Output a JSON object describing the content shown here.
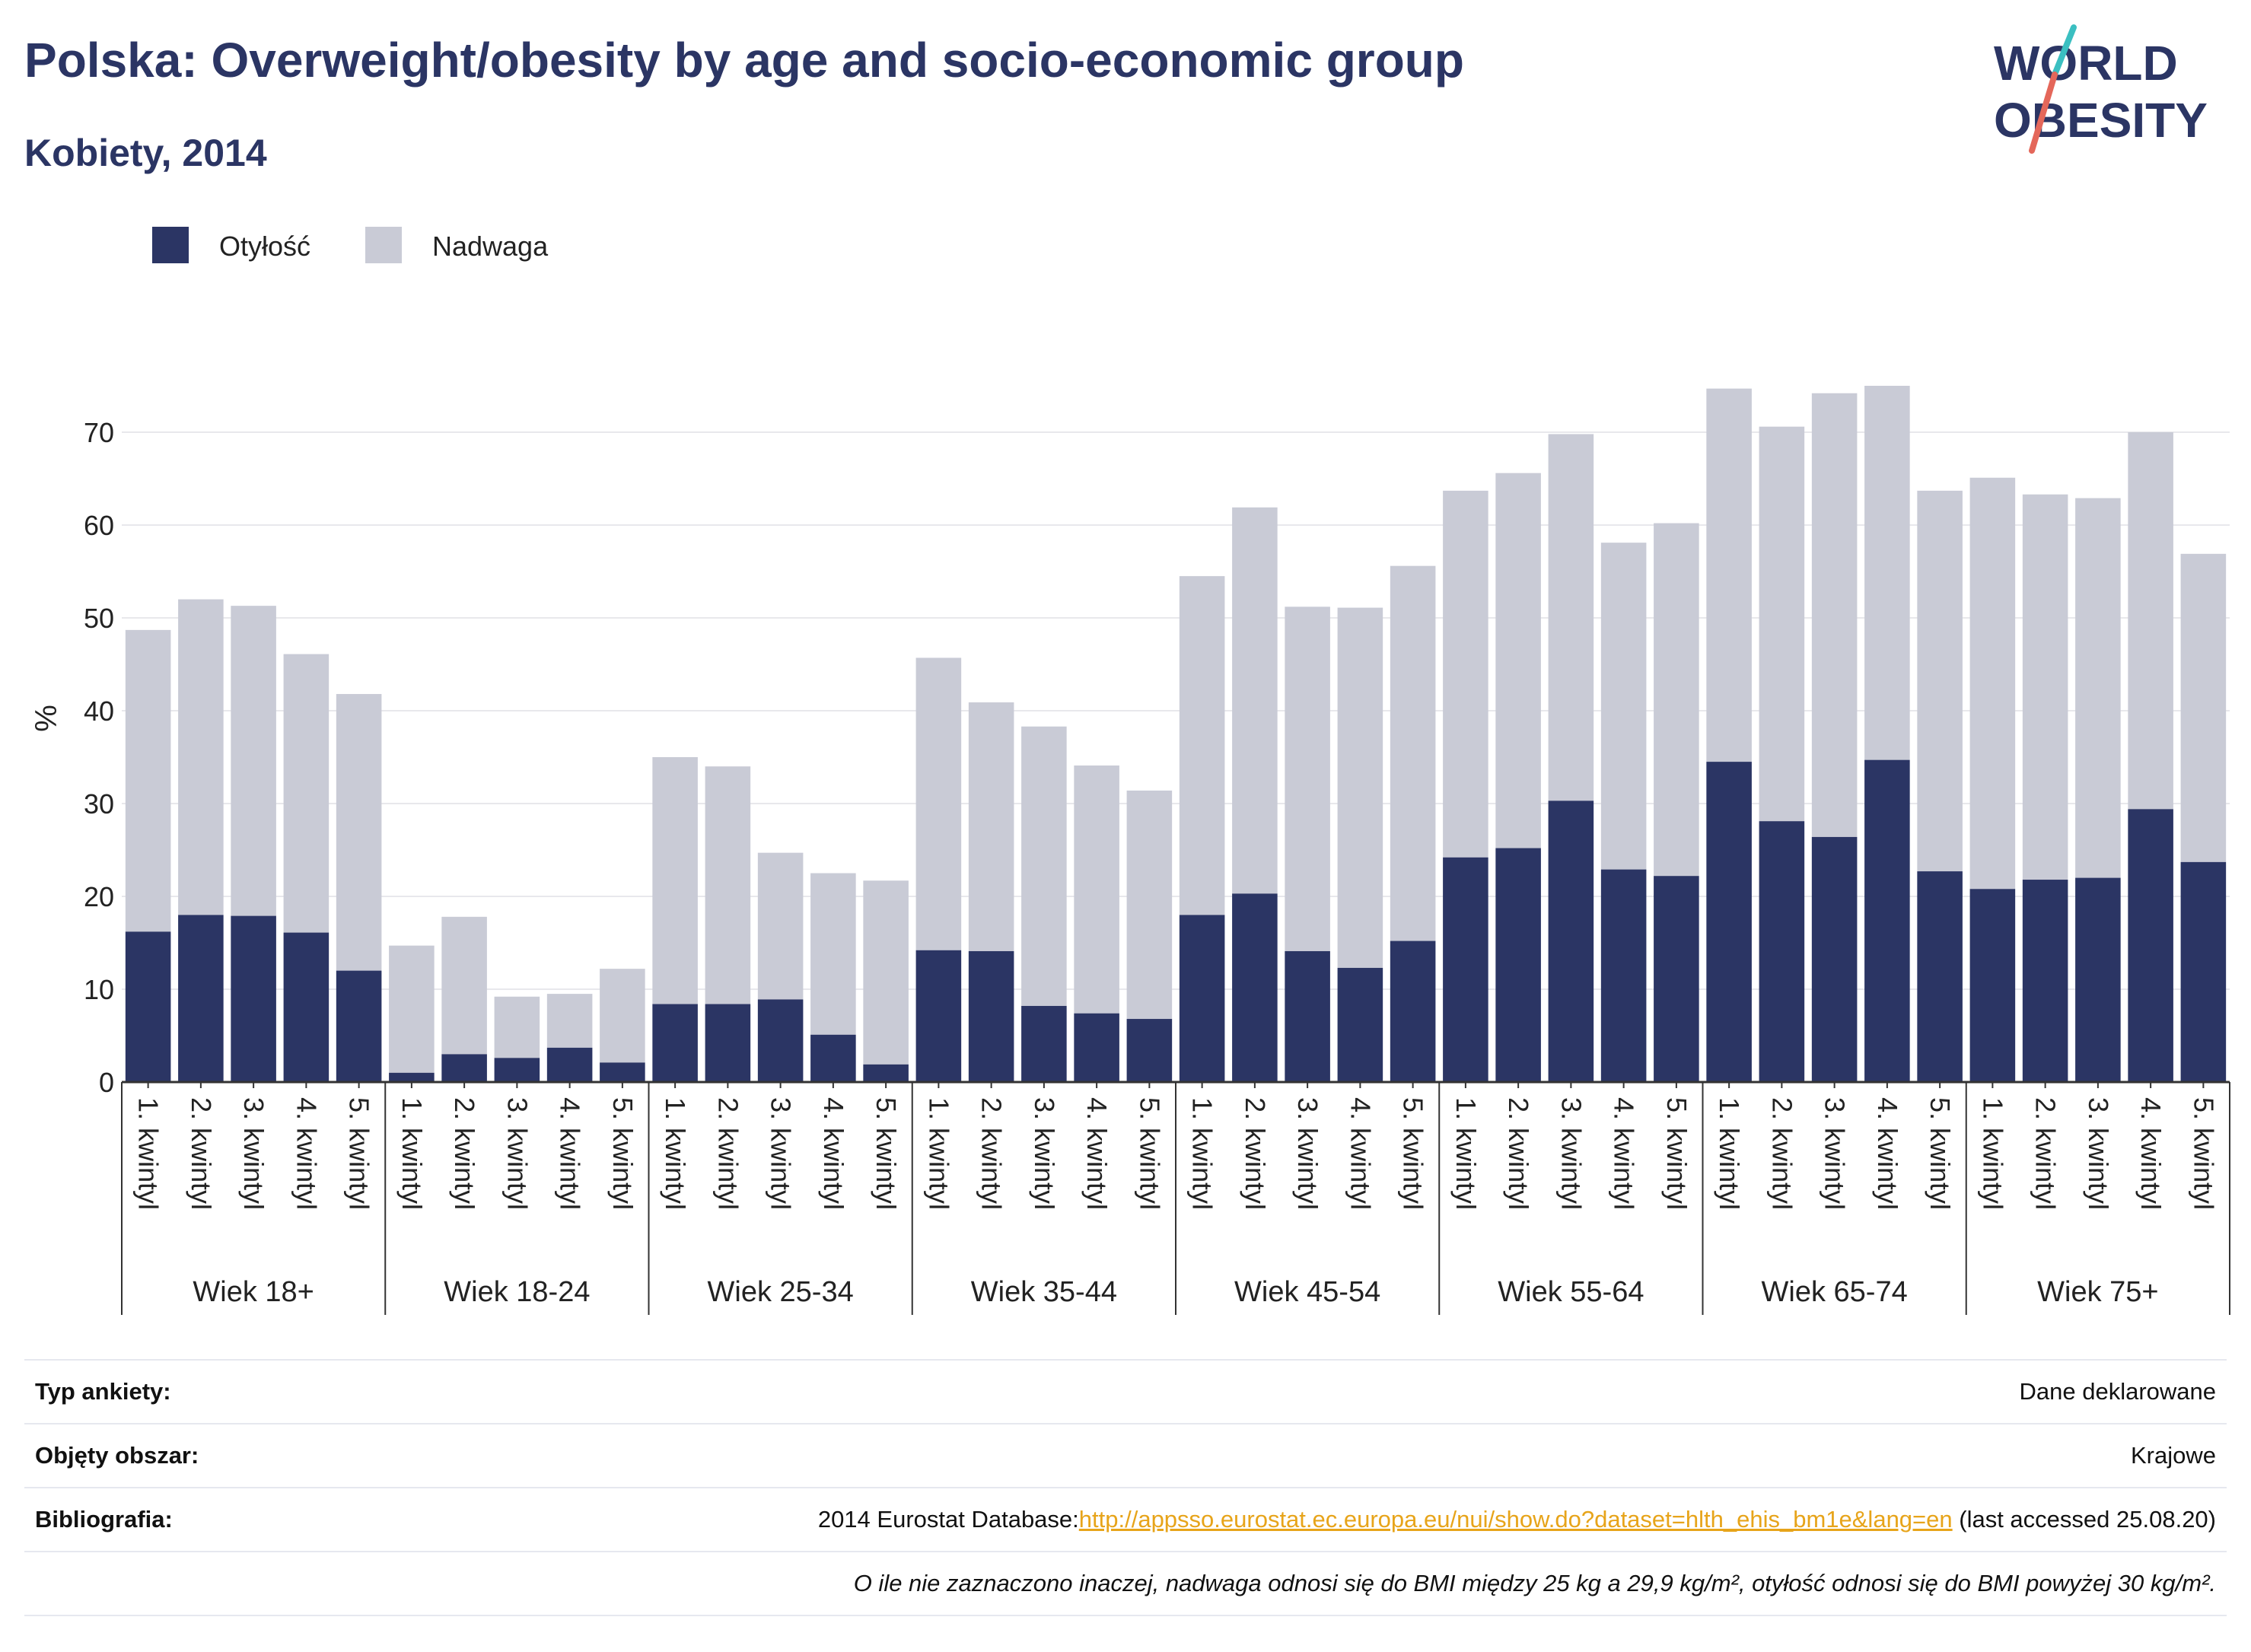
{
  "header": {
    "title": "Polska: Overweight/obesity by age and socio-economic group",
    "subtitle": "Kobiety, 2014"
  },
  "logo": {
    "line1": "WORLD",
    "line2": "OBESITY",
    "color_text": "#2b3564",
    "color_slash_top": "#3bbfc1",
    "color_slash_bottom": "#e4675a"
  },
  "colors": {
    "obesity": "#2b3564",
    "overweight": "#c9cbd6",
    "grid": "#e8e8ec",
    "axis": "#333333",
    "link": "#e7a41a"
  },
  "chart_data": {
    "type": "bar",
    "stacked": true,
    "ylabel": "%",
    "ylim": [
      0,
      80
    ],
    "yticks": [
      0,
      10,
      20,
      30,
      40,
      50,
      60,
      70
    ],
    "grid": true,
    "legend_position": "top-left",
    "subcategories": [
      "1. kwintyl",
      "2. kwintyl",
      "3. kwintyl",
      "4. kwintyl",
      "5. kwintyl"
    ],
    "groups": [
      "Wiek 18+",
      "Wiek 18-24",
      "Wiek 25-34",
      "Wiek 35-44",
      "Wiek 45-54",
      "Wiek 55-64",
      "Wiek 65-74",
      "Wiek 75+"
    ],
    "series": [
      {
        "name": "Otyłość",
        "values": [
          16.2,
          18.0,
          17.9,
          16.1,
          12.0,
          1.0,
          3.0,
          2.6,
          3.7,
          2.1,
          8.4,
          8.4,
          8.9,
          5.1,
          1.9,
          14.2,
          14.1,
          8.2,
          7.4,
          6.8,
          18.0,
          20.3,
          14.1,
          12.3,
          15.2,
          24.2,
          25.2,
          30.3,
          22.9,
          22.2,
          34.5,
          28.1,
          26.4,
          34.7,
          22.7,
          20.8,
          21.8,
          22.0,
          29.4,
          23.7
        ]
      },
      {
        "name": "Nadwaga",
        "values": [
          32.5,
          34.0,
          33.4,
          30.0,
          29.8,
          13.7,
          14.8,
          6.6,
          5.8,
          10.1,
          26.6,
          25.6,
          15.8,
          17.4,
          19.8,
          31.5,
          26.8,
          30.1,
          26.7,
          24.6,
          36.5,
          41.6,
          37.1,
          38.8,
          40.4,
          39.5,
          40.4,
          39.5,
          35.2,
          38.0,
          40.2,
          42.5,
          47.8,
          40.3,
          41.0,
          44.3,
          41.5,
          40.9,
          40.6,
          33.2
        ]
      }
    ]
  },
  "info": {
    "survey_type_label": "Typ ankiety:",
    "survey_type_value": "Dane deklarowane",
    "area_label": "Objęty obszar:",
    "area_value": "Krajowe",
    "bibliography_label": "Bibliografia:",
    "bibliography_prefix": "2014 Eurostat Database:",
    "bibliography_link": "http://appsso.eurostat.ec.europa.eu/nui/show.do?dataset=hlth_ehis_bm1e&lang=en",
    "bibliography_suffix": " (last accessed 25.08.20)",
    "note": "O ile nie zaznaczono inaczej, nadwaga odnosi się do BMI między 25 kg a 29,9 kg/m², otyłość odnosi się do BMI powyżej 30 kg/m²."
  }
}
